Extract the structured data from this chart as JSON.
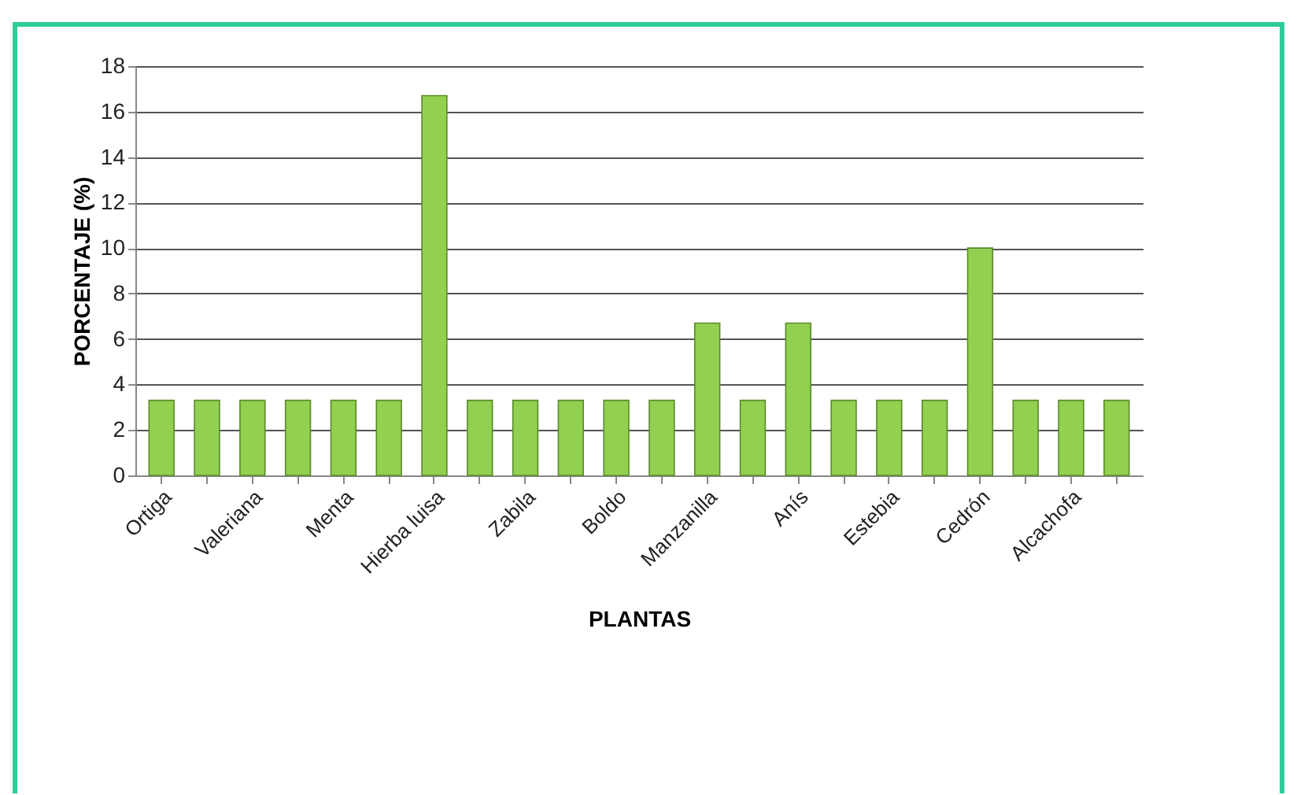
{
  "chart_data": {
    "type": "bar",
    "xlabel": "PLANTAS",
    "ylabel": "PORCENTAJE (%)",
    "categories": [
      "Ortiga",
      null,
      "Valeriana",
      null,
      "Menta",
      null,
      "Hierba luisa",
      null,
      "Zabila",
      null,
      "Boldo",
      null,
      "Manzanilla",
      null,
      "Anís",
      null,
      "Estebia",
      null,
      "Cedrón",
      null,
      "Alcachofa",
      null
    ],
    "values": [
      3.3,
      3.3,
      3.3,
      3.3,
      3.3,
      3.3,
      16.7,
      3.3,
      3.3,
      3.3,
      3.3,
      3.3,
      6.7,
      3.3,
      6.7,
      3.3,
      3.3,
      3.3,
      10,
      3.3,
      3.3,
      3.3
    ],
    "color": "#92d050",
    "ylim": [
      0,
      18
    ],
    "yticks": [
      0,
      2,
      4,
      6,
      8,
      10,
      12,
      14,
      16,
      18
    ],
    "grid": "y"
  }
}
